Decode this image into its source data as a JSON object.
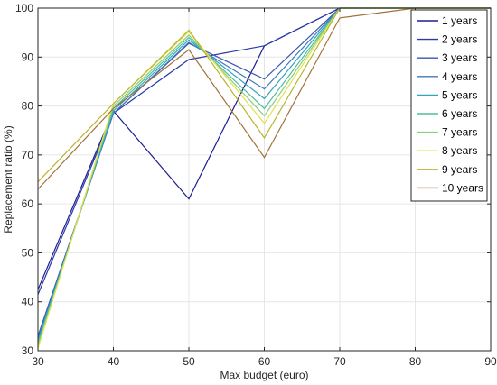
{
  "chart_data": {
    "type": "line",
    "title": "",
    "xlabel": "Max budget (euro)",
    "ylabel": "Replacement ratio (%)",
    "xlim": [
      30,
      90
    ],
    "ylim": [
      30,
      100
    ],
    "xticks": [
      30,
      40,
      50,
      60,
      70,
      80,
      90
    ],
    "yticks": [
      30,
      40,
      50,
      60,
      70,
      80,
      90,
      100
    ],
    "grid": true,
    "legend_position": "top-right",
    "x": [
      30,
      40,
      50,
      60,
      70,
      80,
      90
    ],
    "series": [
      {
        "name": "1 years",
        "color": "#1f1f8f",
        "values": [
          42.5,
          79.0,
          61.0,
          92.3,
          100,
          100,
          100
        ]
      },
      {
        "name": "2 years",
        "color": "#2b3aa8",
        "values": [
          41.5,
          78.5,
          89.5,
          92.3,
          100,
          100,
          100
        ]
      },
      {
        "name": "3 years",
        "color": "#3657b0",
        "values": [
          33.0,
          78.5,
          92.8,
          85.5,
          100,
          100,
          100
        ]
      },
      {
        "name": "4 years",
        "color": "#3f79b8",
        "values": [
          32.5,
          78.5,
          93.0,
          83.5,
          100,
          100,
          100
        ]
      },
      {
        "name": "5 years",
        "color": "#35a3c2",
        "values": [
          32.0,
          79.0,
          93.5,
          81.5,
          100,
          100,
          100
        ]
      },
      {
        "name": "6 years",
        "color": "#4bbfa0",
        "values": [
          31.5,
          79.5,
          94.0,
          79.5,
          100,
          100,
          100
        ]
      },
      {
        "name": "7 years",
        "color": "#8ccf7a",
        "values": [
          31.0,
          80.0,
          94.5,
          78.0,
          100,
          100,
          100
        ]
      },
      {
        "name": "8 years",
        "color": "#e3e14a",
        "values": [
          30.5,
          80.5,
          95.2,
          76.5,
          100,
          100,
          100
        ]
      },
      {
        "name": "9 years",
        "color": "#b9b42a",
        "values": [
          64.5,
          80.5,
          95.5,
          73.5,
          100,
          100,
          100
        ]
      },
      {
        "name": "10 years",
        "color": "#a3723a",
        "values": [
          63.0,
          79.5,
          91.5,
          69.5,
          98.0,
          100,
          100
        ]
      }
    ]
  }
}
